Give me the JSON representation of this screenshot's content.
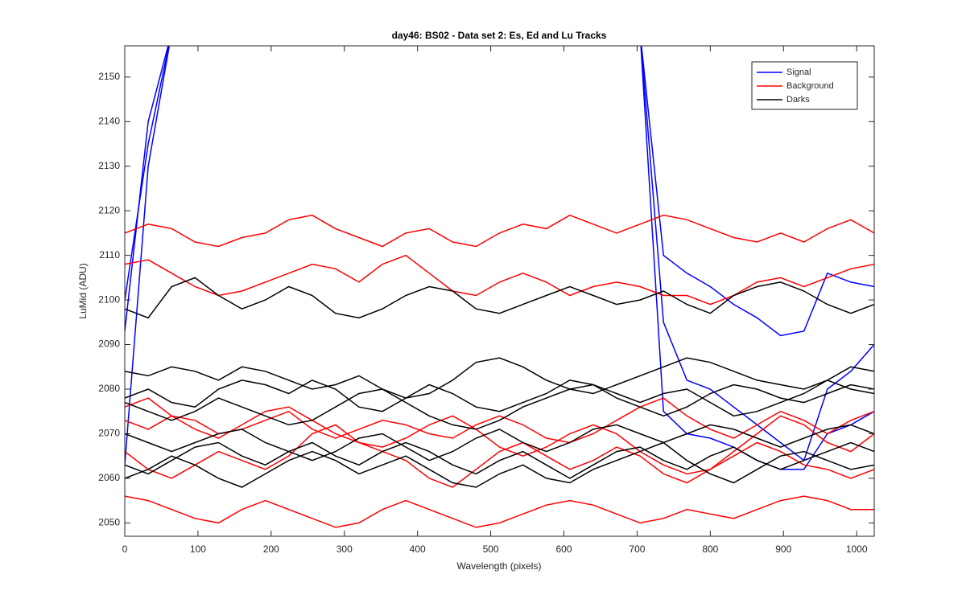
{
  "chart_data": {
    "type": "line",
    "title": "day46: BS02 - Data set 2: Es, Ed and Lu Tracks",
    "xlabel": "Wavelength (pixels)",
    "ylabel": "LuMid (ADU)",
    "xlim": [
      0,
      1024
    ],
    "xticks": [
      0,
      100,
      200,
      300,
      400,
      500,
      600,
      700,
      800,
      900,
      1000
    ],
    "ylim": [
      2047,
      2157
    ],
    "yticks": [
      2050,
      2060,
      2070,
      2080,
      2090,
      2100,
      2110,
      2120,
      2130,
      2140,
      2150
    ],
    "legend": "top-right",
    "x": [
      0,
      32,
      64,
      96,
      128,
      160,
      192,
      224,
      256,
      288,
      320,
      352,
      384,
      416,
      448,
      480,
      512,
      544,
      576,
      608,
      640,
      672,
      704,
      736,
      768,
      800,
      832,
      864,
      896,
      928,
      960,
      992,
      1024
    ],
    "series": [
      {
        "name": "Signal",
        "color": "#0000ff",
        "lines": [
          [
            2093,
            2140,
            2160,
            null,
            null,
            null,
            null,
            null,
            null,
            null,
            null,
            null,
            null,
            null,
            null,
            null,
            null,
            null,
            null,
            null,
            null,
            null,
            2160,
            2095,
            2082,
            2080,
            2076,
            2072,
            2068,
            2064,
            2080,
            2084,
            2090
          ],
          [
            2100,
            2135,
            2160,
            null,
            null,
            null,
            null,
            null,
            null,
            null,
            null,
            null,
            null,
            null,
            null,
            null,
            null,
            null,
            null,
            null,
            null,
            null,
            2160,
            2110,
            2106,
            2103,
            2099,
            2096,
            2092,
            2093,
            2106,
            2104,
            2103
          ],
          [
            2063,
            2130,
            2160,
            null,
            null,
            null,
            null,
            null,
            null,
            null,
            null,
            null,
            null,
            null,
            null,
            null,
            null,
            null,
            null,
            null,
            null,
            null,
            2160,
            2075,
            2070,
            2069,
            2067,
            2064,
            2062,
            2062,
            2070,
            2072,
            2075
          ]
        ]
      },
      {
        "name": "Background",
        "color": "#ff0000",
        "lines": [
          [
            2115,
            2117,
            2116,
            2113,
            2112,
            2114,
            2115,
            2118,
            2119,
            2116,
            2114,
            2112,
            2115,
            2116,
            2113,
            2112,
            2115,
            2117,
            2116,
            2119,
            2117,
            2115,
            2117,
            2119,
            2118,
            2116,
            2114,
            2113,
            2115,
            2113,
            2116,
            2118,
            2115
          ],
          [
            2108,
            2109,
            2106,
            2103,
            2101,
            2102,
            2104,
            2106,
            2108,
            2107,
            2104,
            2108,
            2110,
            2106,
            2102,
            2101,
            2104,
            2106,
            2104,
            2101,
            2103,
            2104,
            2103,
            2101,
            2101,
            2099,
            2101,
            2104,
            2105,
            2103,
            2105,
            2107,
            2108
          ],
          [
            2073,
            2071,
            2074,
            2073,
            2070,
            2071,
            2073,
            2075,
            2071,
            2069,
            2071,
            2073,
            2072,
            2070,
            2069,
            2072,
            2074,
            2072,
            2069,
            2068,
            2070,
            2073,
            2076,
            2078,
            2074,
            2071,
            2069,
            2072,
            2075,
            2073,
            2070,
            2073,
            2075
          ],
          [
            2066,
            2062,
            2060,
            2063,
            2066,
            2064,
            2062,
            2065,
            2070,
            2072,
            2068,
            2066,
            2064,
            2060,
            2058,
            2062,
            2066,
            2068,
            2065,
            2062,
            2064,
            2067,
            2065,
            2061,
            2059,
            2062,
            2065,
            2068,
            2066,
            2063,
            2062,
            2060,
            2062
          ],
          [
            2056,
            2055,
            2053,
            2051,
            2050,
            2053,
            2055,
            2053,
            2051,
            2049,
            2050,
            2053,
            2055,
            2053,
            2051,
            2049,
            2050,
            2052,
            2054,
            2055,
            2054,
            2052,
            2050,
            2051,
            2053,
            2052,
            2051,
            2053,
            2055,
            2056,
            2055,
            2053,
            2053
          ],
          [
            2076,
            2078,
            2074,
            2071,
            2069,
            2072,
            2075,
            2076,
            2073,
            2070,
            2068,
            2067,
            2069,
            2072,
            2074,
            2071,
            2067,
            2065,
            2067,
            2070,
            2072,
            2070,
            2066,
            2063,
            2061,
            2062,
            2066,
            2070,
            2074,
            2072,
            2068,
            2066,
            2070
          ]
        ]
      },
      {
        "name": "Darks",
        "color": "#000000",
        "lines": [
          [
            2098,
            2096,
            2103,
            2105,
            2101,
            2098,
            2100,
            2103,
            2101,
            2097,
            2096,
            2098,
            2101,
            2103,
            2102,
            2098,
            2097,
            2099,
            2101,
            2103,
            2101,
            2099,
            2100,
            2102,
            2099,
            2097,
            2101,
            2103,
            2104,
            2102,
            2099,
            2097,
            2099
          ],
          [
            2084,
            2083,
            2085,
            2084,
            2082,
            2085,
            2084,
            2082,
            2080,
            2081,
            2083,
            2080,
            2078,
            2079,
            2082,
            2086,
            2087,
            2085,
            2082,
            2080,
            2079,
            2081,
            2083,
            2085,
            2087,
            2086,
            2084,
            2082,
            2081,
            2080,
            2082,
            2085,
            2084
          ],
          [
            2078,
            2080,
            2077,
            2076,
            2080,
            2082,
            2081,
            2079,
            2082,
            2080,
            2076,
            2075,
            2078,
            2081,
            2079,
            2076,
            2075,
            2077,
            2079,
            2082,
            2081,
            2078,
            2076,
            2074,
            2076,
            2079,
            2081,
            2080,
            2078,
            2077,
            2079,
            2081,
            2080
          ],
          [
            2077,
            2075,
            2073,
            2075,
            2078,
            2076,
            2074,
            2072,
            2073,
            2076,
            2079,
            2080,
            2077,
            2074,
            2072,
            2071,
            2073,
            2076,
            2078,
            2080,
            2081,
            2079,
            2077,
            2079,
            2080,
            2077,
            2074,
            2075,
            2077,
            2079,
            2082,
            2080,
            2079
          ],
          [
            2063,
            2061,
            2064,
            2067,
            2068,
            2065,
            2063,
            2066,
            2068,
            2065,
            2063,
            2066,
            2068,
            2066,
            2063,
            2061,
            2064,
            2066,
            2063,
            2060,
            2063,
            2066,
            2067,
            2064,
            2062,
            2065,
            2067,
            2064,
            2062,
            2064,
            2066,
            2068,
            2066
          ],
          [
            2060,
            2062,
            2065,
            2063,
            2060,
            2058,
            2061,
            2064,
            2066,
            2064,
            2061,
            2063,
            2065,
            2062,
            2059,
            2058,
            2061,
            2063,
            2060,
            2059,
            2062,
            2064,
            2066,
            2068,
            2064,
            2061,
            2059,
            2062,
            2065,
            2066,
            2064,
            2062,
            2063
          ],
          [
            2070,
            2068,
            2066,
            2068,
            2070,
            2071,
            2068,
            2066,
            2064,
            2066,
            2069,
            2070,
            2067,
            2064,
            2066,
            2069,
            2071,
            2068,
            2066,
            2068,
            2071,
            2072,
            2070,
            2068,
            2070,
            2072,
            2071,
            2069,
            2067,
            2069,
            2071,
            2072,
            2070
          ]
        ]
      }
    ]
  }
}
